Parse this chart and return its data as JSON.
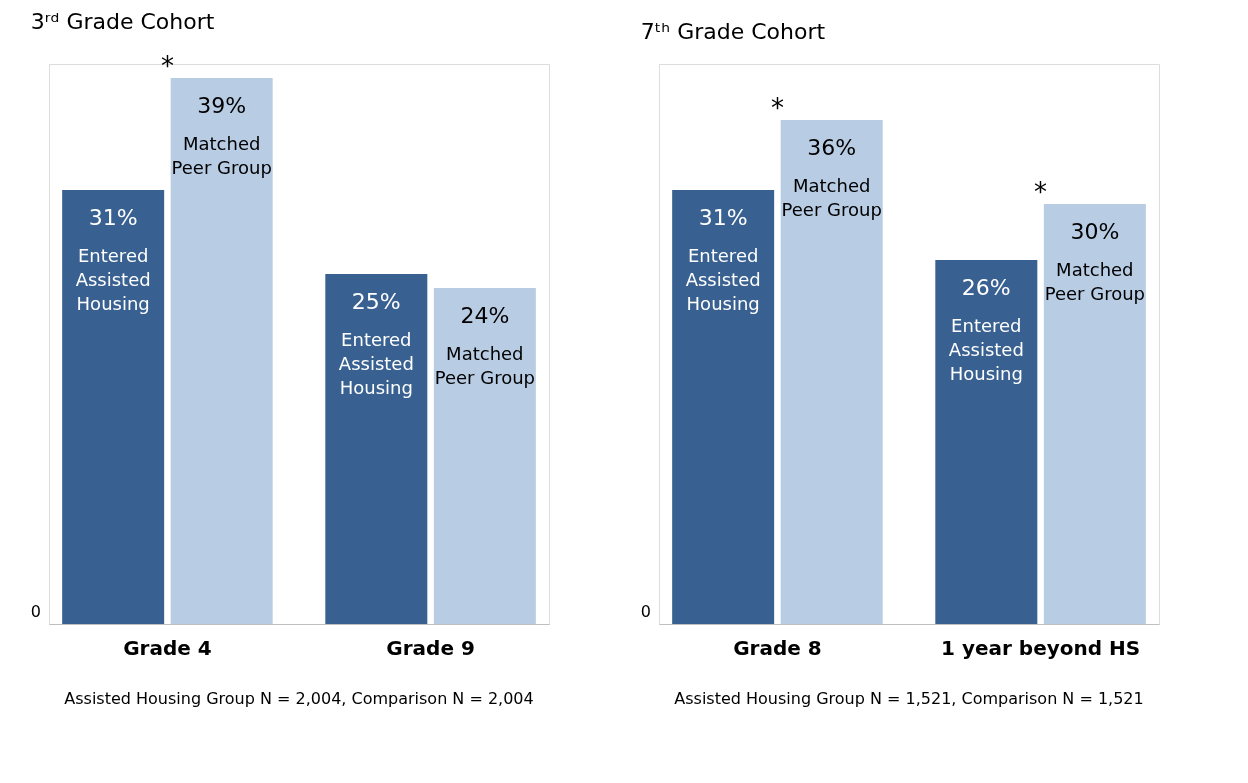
{
  "chart_data": [
    {
      "type": "bar",
      "title": "3ʳᵈ Grade Cohort",
      "categories": [
        "Grade 4",
        "Grade 9"
      ],
      "series": [
        {
          "name": "Entered Assisted Housing",
          "color": "#386090",
          "values": [
            31,
            25
          ],
          "value_labels": [
            "31%",
            "25%"
          ]
        },
        {
          "name": "Matched Peer Group",
          "color": "#b8cce4",
          "values": [
            39,
            24
          ],
          "value_labels": [
            "39%",
            "24%"
          ]
        }
      ],
      "annotations": [
        "0",
        {
          "text": "*",
          "x": "Grade 4",
          "y": 39
        },
        "Assisted Housing Group N = 2,004, Comparison N = 2,004"
      ]
    },
    {
      "type": "bar",
      "title": "7ᵗʰ Grade Cohort",
      "categories": [
        "Grade 8",
        "1 year beyond HS"
      ],
      "series": [
        {
          "name": "Entered Assisted Housing",
          "color": "#386090",
          "values": [
            31,
            26
          ],
          "value_labels": [
            "31%",
            "26%"
          ]
        },
        {
          "name": "Matched Peer Group",
          "color": "#b8cce4",
          "values": [
            36,
            30
          ],
          "value_labels": [
            "36%",
            "30%"
          ]
        }
      ],
      "annotations": [
        "0",
        {
          "text": "*",
          "x": "Grade 8",
          "y": 36
        },
        {
          "text": "*",
          "x": "1 year beyond HS",
          "y": 30
        },
        "Assisted Housing Group N = 1,521, Comparison N = 1,521"
      ]
    }
  ]
}
